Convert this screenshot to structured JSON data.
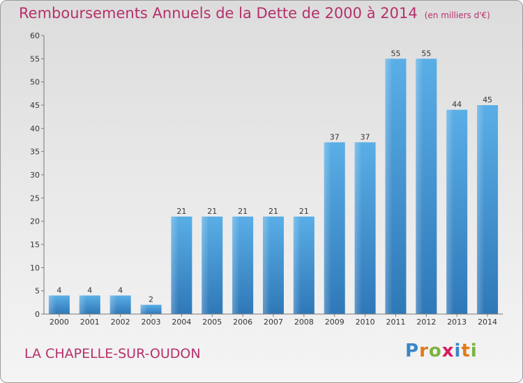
{
  "header": {
    "title": "Remboursements Annuels de la Dette de 2000 à 2014",
    "unit": "(en milliers d'€)"
  },
  "footer": {
    "town": "LA CHAPELLE-SUR-OUDON",
    "logo": {
      "letters": [
        "P",
        "r",
        "o",
        "x",
        "i",
        "t",
        "i"
      ],
      "colors": [
        "#3a86c8",
        "#e07b1a",
        "#7cb342",
        "#d81b60",
        "#3a86c8",
        "#e07b1a",
        "#7cb342"
      ]
    }
  },
  "colors": {
    "title": "#b5306a",
    "bar": "#4f9fdc",
    "bar_dark": "#2f78b8",
    "axis_text": "#333333"
  },
  "chart_data": {
    "type": "bar",
    "categories": [
      "2000",
      "2001",
      "2002",
      "2003",
      "2004",
      "2005",
      "2006",
      "2007",
      "2008",
      "2009",
      "2010",
      "2011",
      "2012",
      "2013",
      "2014"
    ],
    "values": [
      4,
      4,
      4,
      2,
      21,
      21,
      21,
      21,
      21,
      37,
      37,
      55,
      55,
      44,
      45
    ],
    "title": "Remboursements Annuels de la Dette de 2000 à 2014",
    "xlabel": "",
    "ylabel": "",
    "ylim": [
      0,
      60
    ],
    "yticks": [
      0,
      5,
      10,
      15,
      20,
      25,
      30,
      35,
      40,
      45,
      50,
      55,
      60
    ],
    "grid": false,
    "legend": "none"
  }
}
